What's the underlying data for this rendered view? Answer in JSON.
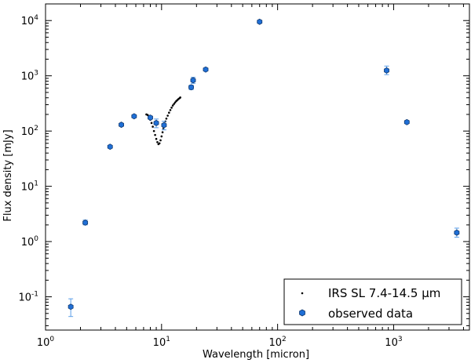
{
  "chart_data": {
    "type": "scatter",
    "title": "",
    "xlabel": "Wavelength [micron]",
    "ylabel": "Flux density [mJy]",
    "xscale": "log",
    "yscale": "log",
    "xlim": [
      1,
      4500
    ],
    "ylim": [
      0.025,
      20000
    ],
    "x_ticks": [
      {
        "value": 1,
        "base": "10",
        "exp": "0"
      },
      {
        "value": 10,
        "base": "10",
        "exp": "1"
      },
      {
        "value": 100,
        "base": "10",
        "exp": "2"
      },
      {
        "value": 1000,
        "base": "10",
        "exp": "3"
      }
    ],
    "y_ticks": [
      {
        "value": 0.1,
        "base": "10",
        "exp": "-1"
      },
      {
        "value": 1,
        "base": "10",
        "exp": "0"
      },
      {
        "value": 10,
        "base": "10",
        "exp": "1"
      },
      {
        "value": 100,
        "base": "10",
        "exp": "2"
      },
      {
        "value": 1000,
        "base": "10",
        "exp": "3"
      },
      {
        "value": 10000,
        "base": "10",
        "exp": "4"
      }
    ],
    "grid": false,
    "legend_position": "bottom-right",
    "series": [
      {
        "name": "IRS SL 7.4-14.5 µm",
        "marker": "dot",
        "color": "#000000",
        "x": [
          7.4,
          7.6,
          7.8,
          8.0,
          8.2,
          8.4,
          8.6,
          8.8,
          9.0,
          9.2,
          9.4,
          9.6,
          9.8,
          10.0,
          10.2,
          10.4,
          10.6,
          10.8,
          11.0,
          11.3,
          11.6,
          11.9,
          12.2,
          12.5,
          12.8,
          13.1,
          13.4,
          13.7,
          14.0,
          14.3,
          14.5
        ],
        "y": [
          200,
          195,
          180,
          160,
          140,
          120,
          100,
          85,
          72,
          63,
          58,
          60,
          68,
          80,
          95,
          112,
          130,
          150,
          168,
          190,
          215,
          240,
          265,
          290,
          310,
          330,
          350,
          365,
          380,
          395,
          405
        ]
      },
      {
        "name": "observed data",
        "marker": "hexagon",
        "color": "#1f6fd6",
        "errorbar_color": "#5b9ee8",
        "points": [
          {
            "x": 1.65,
            "y": 0.066,
            "yerr_low": 0.044,
            "yerr_high": 0.092
          },
          {
            "x": 2.2,
            "y": 2.2,
            "yerr_low": 2.0,
            "yerr_high": 2.45
          },
          {
            "x": 3.6,
            "y": 52,
            "yerr_low": 50,
            "yerr_high": 55
          },
          {
            "x": 4.5,
            "y": 130,
            "yerr_low": 126,
            "yerr_high": 135
          },
          {
            "x": 5.8,
            "y": 185,
            "yerr_low": 180,
            "yerr_high": 192
          },
          {
            "x": 8.0,
            "y": 175,
            "yerr_low": 170,
            "yerr_high": 182
          },
          {
            "x": 9.0,
            "y": 140,
            "yerr_low": 115,
            "yerr_high": 165
          },
          {
            "x": 10.5,
            "y": 128,
            "yerr_low": 105,
            "yerr_high": 150
          },
          {
            "x": 18.0,
            "y": 620,
            "yerr_low": 560,
            "yerr_high": 680
          },
          {
            "x": 18.7,
            "y": 830,
            "yerr_low": 730,
            "yerr_high": 940
          },
          {
            "x": 24.0,
            "y": 1300,
            "yerr_low": 1260,
            "yerr_high": 1340
          },
          {
            "x": 70.0,
            "y": 9500,
            "yerr_low": 9300,
            "yerr_high": 9700
          },
          {
            "x": 870.0,
            "y": 1250,
            "yerr_low": 1050,
            "yerr_high": 1500
          },
          {
            "x": 1300.0,
            "y": 145,
            "yerr_low": 140,
            "yerr_high": 150
          },
          {
            "x": 3500.0,
            "y": 1.45,
            "yerr_low": 1.2,
            "yerr_high": 1.75
          }
        ]
      }
    ]
  }
}
